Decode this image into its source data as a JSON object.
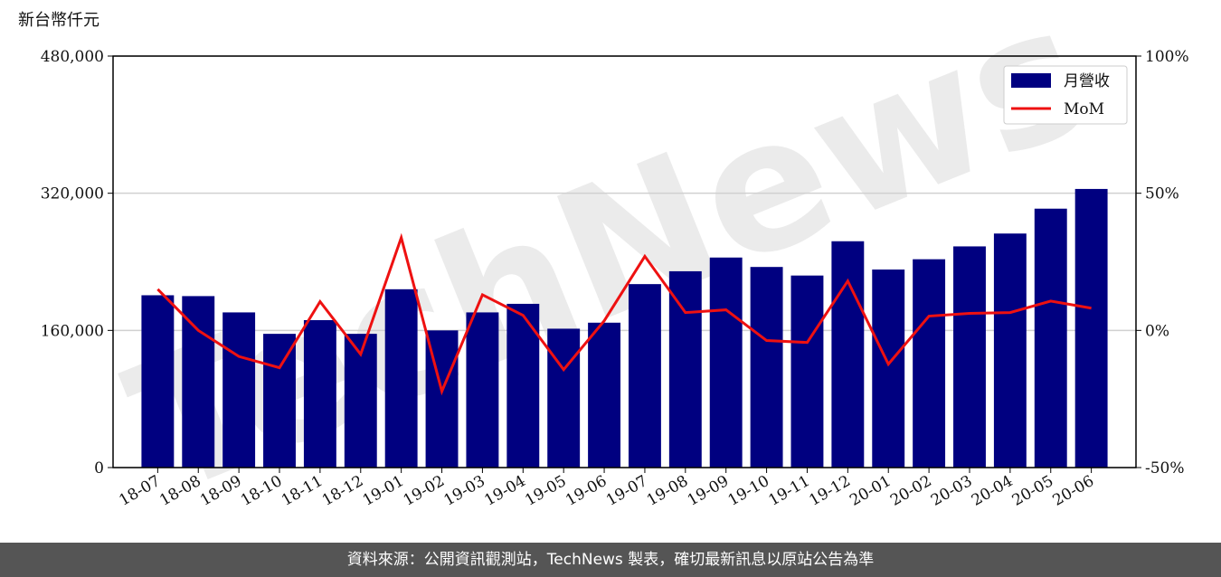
{
  "chart_data": {
    "type": "bar_line",
    "y_unit": "新台幣仟元",
    "watermark": "TechNews",
    "categories": [
      "18-07",
      "18-08",
      "18-09",
      "18-10",
      "18-11",
      "18-12",
      "19-01",
      "19-02",
      "19-03",
      "19-04",
      "19-05",
      "19-06",
      "19-07",
      "19-08",
      "19-09",
      "19-10",
      "19-11",
      "19-12",
      "20-01",
      "20-02",
      "20-03",
      "20-04",
      "20-05",
      "20-06"
    ],
    "series": [
      {
        "name": "月營收",
        "type": "bar",
        "color": "#000080",
        "values": [
          201000,
          200000,
          181000,
          156000,
          172000,
          156000,
          208000,
          160000,
          181000,
          191000,
          162000,
          169000,
          214000,
          229000,
          245000,
          234000,
          224000,
          264000,
          231000,
          243000,
          258000,
          273000,
          302000,
          325000
        ]
      },
      {
        "name": "MoM",
        "type": "line",
        "axis": "y2",
        "color": "#ee1111",
        "values": [
          15,
          0,
          -9.5,
          -13.6,
          10.5,
          -8.7,
          33.8,
          -22.2,
          13,
          5.5,
          -14.3,
          3.5,
          27,
          6.5,
          7.5,
          -3.7,
          -4.4,
          18,
          -12.3,
          5.2,
          6.2,
          6.5,
          10.7,
          8.1
        ]
      }
    ],
    "ylim": [
      0,
      480000
    ],
    "yticks": [
      0,
      {
        "value": 160000,
        "label": "160,000"
      },
      {
        "value": 320000,
        "label": "320,000"
      },
      {
        "value": 480000,
        "label": "480,000"
      }
    ],
    "y2lim": [
      -50,
      100
    ],
    "y2ticks": [
      {
        "value": -50,
        "label": "-50%"
      },
      {
        "value": 0,
        "label": "0%"
      },
      {
        "value": 50,
        "label": "50%"
      },
      {
        "value": 100,
        "label": "100%"
      }
    ],
    "grid": true,
    "legend": "upper right"
  },
  "footer": "資料來源：公開資訊觀測站，TechNews 製表，確切最新訊息以原站公告為準"
}
